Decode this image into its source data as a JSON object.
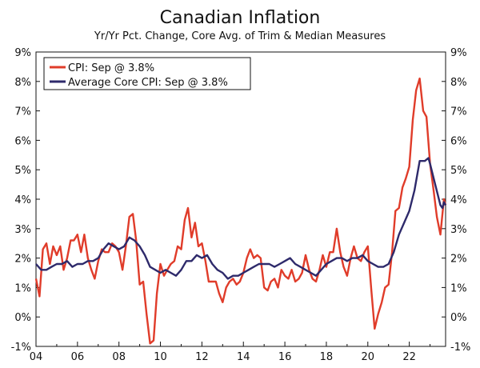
{
  "chart_data": {
    "type": "line",
    "title": "Canadian Inflation",
    "subtitle": "Yr/Yr Pct. Change, Core Avg. of Trim & Median Measures",
    "xlabel": "",
    "ylabel": "",
    "xlim": [
      2004,
      2023.75
    ],
    "ylim": [
      -1,
      9
    ],
    "x_ticks": [
      "04",
      "06",
      "08",
      "10",
      "12",
      "14",
      "16",
      "18",
      "20",
      "22"
    ],
    "y_ticks": [
      "-1%",
      "0%",
      "1%",
      "2%",
      "3%",
      "4%",
      "5%",
      "6%",
      "7%",
      "8%",
      "9%"
    ],
    "legend_position": "top-left",
    "series": [
      {
        "name": "CPI: Sep @ 3.8%",
        "color": "#e03c2a",
        "points": [
          [
            2004.0,
            1.3
          ],
          [
            2004.17,
            0.7
          ],
          [
            2004.33,
            2.3
          ],
          [
            2004.5,
            2.5
          ],
          [
            2004.67,
            1.8
          ],
          [
            2004.83,
            2.4
          ],
          [
            2005.0,
            2.1
          ],
          [
            2005.17,
            2.4
          ],
          [
            2005.33,
            1.6
          ],
          [
            2005.5,
            2.0
          ],
          [
            2005.67,
            2.6
          ],
          [
            2005.83,
            2.6
          ],
          [
            2006.0,
            2.8
          ],
          [
            2006.17,
            2.2
          ],
          [
            2006.33,
            2.8
          ],
          [
            2006.5,
            2.0
          ],
          [
            2006.67,
            1.6
          ],
          [
            2006.83,
            1.3
          ],
          [
            2007.0,
            1.9
          ],
          [
            2007.17,
            2.3
          ],
          [
            2007.33,
            2.2
          ],
          [
            2007.5,
            2.2
          ],
          [
            2007.67,
            2.5
          ],
          [
            2007.83,
            2.4
          ],
          [
            2008.0,
            2.2
          ],
          [
            2008.17,
            1.6
          ],
          [
            2008.33,
            2.4
          ],
          [
            2008.5,
            3.4
          ],
          [
            2008.67,
            3.5
          ],
          [
            2008.83,
            2.6
          ],
          [
            2009.0,
            1.1
          ],
          [
            2009.17,
            1.2
          ],
          [
            2009.33,
            0.1
          ],
          [
            2009.5,
            -0.9
          ],
          [
            2009.67,
            -0.8
          ],
          [
            2009.83,
            0.8
          ],
          [
            2010.0,
            1.8
          ],
          [
            2010.17,
            1.4
          ],
          [
            2010.33,
            1.6
          ],
          [
            2010.5,
            1.8
          ],
          [
            2010.67,
            1.9
          ],
          [
            2010.83,
            2.4
          ],
          [
            2011.0,
            2.3
          ],
          [
            2011.17,
            3.3
          ],
          [
            2011.33,
            3.7
          ],
          [
            2011.5,
            2.7
          ],
          [
            2011.67,
            3.2
          ],
          [
            2011.83,
            2.4
          ],
          [
            2012.0,
            2.5
          ],
          [
            2012.17,
            1.9
          ],
          [
            2012.33,
            1.2
          ],
          [
            2012.5,
            1.2
          ],
          [
            2012.67,
            1.2
          ],
          [
            2012.83,
            0.8
          ],
          [
            2013.0,
            0.5
          ],
          [
            2013.17,
            1.0
          ],
          [
            2013.33,
            1.2
          ],
          [
            2013.5,
            1.3
          ],
          [
            2013.67,
            1.1
          ],
          [
            2013.83,
            1.2
          ],
          [
            2014.0,
            1.5
          ],
          [
            2014.17,
            2.0
          ],
          [
            2014.33,
            2.3
          ],
          [
            2014.5,
            2.0
          ],
          [
            2014.67,
            2.1
          ],
          [
            2014.83,
            2.0
          ],
          [
            2015.0,
            1.0
          ],
          [
            2015.17,
            0.9
          ],
          [
            2015.33,
            1.2
          ],
          [
            2015.5,
            1.3
          ],
          [
            2015.67,
            1.0
          ],
          [
            2015.83,
            1.6
          ],
          [
            2016.0,
            1.4
          ],
          [
            2016.17,
            1.3
          ],
          [
            2016.33,
            1.6
          ],
          [
            2016.5,
            1.2
          ],
          [
            2016.67,
            1.3
          ],
          [
            2016.83,
            1.5
          ],
          [
            2017.0,
            2.1
          ],
          [
            2017.17,
            1.6
          ],
          [
            2017.33,
            1.3
          ],
          [
            2017.5,
            1.2
          ],
          [
            2017.67,
            1.6
          ],
          [
            2017.83,
            2.1
          ],
          [
            2018.0,
            1.7
          ],
          [
            2018.17,
            2.2
          ],
          [
            2018.33,
            2.2
          ],
          [
            2018.5,
            3.0
          ],
          [
            2018.67,
            2.2
          ],
          [
            2018.83,
            1.7
          ],
          [
            2019.0,
            1.4
          ],
          [
            2019.17,
            2.0
          ],
          [
            2019.33,
            2.4
          ],
          [
            2019.5,
            2.0
          ],
          [
            2019.67,
            1.9
          ],
          [
            2019.83,
            2.2
          ],
          [
            2020.0,
            2.4
          ],
          [
            2020.17,
            0.9
          ],
          [
            2020.33,
            -0.4
          ],
          [
            2020.5,
            0.1
          ],
          [
            2020.67,
            0.5
          ],
          [
            2020.83,
            1.0
          ],
          [
            2021.0,
            1.1
          ],
          [
            2021.17,
            2.2
          ],
          [
            2021.33,
            3.6
          ],
          [
            2021.5,
            3.7
          ],
          [
            2021.67,
            4.4
          ],
          [
            2021.83,
            4.7
          ],
          [
            2022.0,
            5.1
          ],
          [
            2022.17,
            6.7
          ],
          [
            2022.33,
            7.7
          ],
          [
            2022.5,
            8.1
          ],
          [
            2022.67,
            7.0
          ],
          [
            2022.83,
            6.8
          ],
          [
            2023.0,
            5.2
          ],
          [
            2023.17,
            4.3
          ],
          [
            2023.33,
            3.4
          ],
          [
            2023.5,
            2.8
          ],
          [
            2023.67,
            4.0
          ],
          [
            2023.75,
            3.8
          ]
        ]
      },
      {
        "name": "Average Core CPI: Sep @ 3.8%",
        "color": "#2e2a6b",
        "points": [
          [
            2004.0,
            1.8
          ],
          [
            2004.25,
            1.6
          ],
          [
            2004.5,
            1.6
          ],
          [
            2004.75,
            1.7
          ],
          [
            2005.0,
            1.8
          ],
          [
            2005.25,
            1.8
          ],
          [
            2005.5,
            1.9
          ],
          [
            2005.75,
            1.7
          ],
          [
            2006.0,
            1.8
          ],
          [
            2006.25,
            1.8
          ],
          [
            2006.5,
            1.9
          ],
          [
            2006.75,
            1.9
          ],
          [
            2007.0,
            2.0
          ],
          [
            2007.25,
            2.3
          ],
          [
            2007.5,
            2.5
          ],
          [
            2007.75,
            2.4
          ],
          [
            2008.0,
            2.3
          ],
          [
            2008.25,
            2.4
          ],
          [
            2008.5,
            2.7
          ],
          [
            2008.75,
            2.6
          ],
          [
            2009.0,
            2.4
          ],
          [
            2009.25,
            2.1
          ],
          [
            2009.5,
            1.7
          ],
          [
            2009.75,
            1.6
          ],
          [
            2010.0,
            1.5
          ],
          [
            2010.25,
            1.6
          ],
          [
            2010.5,
            1.5
          ],
          [
            2010.75,
            1.4
          ],
          [
            2011.0,
            1.6
          ],
          [
            2011.25,
            1.9
          ],
          [
            2011.5,
            1.9
          ],
          [
            2011.75,
            2.1
          ],
          [
            2012.0,
            2.0
          ],
          [
            2012.25,
            2.1
          ],
          [
            2012.5,
            1.8
          ],
          [
            2012.75,
            1.6
          ],
          [
            2013.0,
            1.5
          ],
          [
            2013.25,
            1.3
          ],
          [
            2013.5,
            1.4
          ],
          [
            2013.75,
            1.4
          ],
          [
            2014.0,
            1.5
          ],
          [
            2014.25,
            1.6
          ],
          [
            2014.5,
            1.7
          ],
          [
            2014.75,
            1.8
          ],
          [
            2015.0,
            1.8
          ],
          [
            2015.25,
            1.8
          ],
          [
            2015.5,
            1.7
          ],
          [
            2015.75,
            1.8
          ],
          [
            2016.0,
            1.9
          ],
          [
            2016.25,
            2.0
          ],
          [
            2016.5,
            1.8
          ],
          [
            2016.75,
            1.7
          ],
          [
            2017.0,
            1.6
          ],
          [
            2017.25,
            1.5
          ],
          [
            2017.5,
            1.4
          ],
          [
            2017.75,
            1.6
          ],
          [
            2018.0,
            1.8
          ],
          [
            2018.25,
            1.9
          ],
          [
            2018.5,
            2.0
          ],
          [
            2018.75,
            2.0
          ],
          [
            2019.0,
            1.9
          ],
          [
            2019.25,
            2.0
          ],
          [
            2019.5,
            2.0
          ],
          [
            2019.75,
            2.1
          ],
          [
            2020.0,
            1.9
          ],
          [
            2020.25,
            1.8
          ],
          [
            2020.5,
            1.7
          ],
          [
            2020.75,
            1.7
          ],
          [
            2021.0,
            1.8
          ],
          [
            2021.25,
            2.2
          ],
          [
            2021.5,
            2.8
          ],
          [
            2021.75,
            3.2
          ],
          [
            2022.0,
            3.6
          ],
          [
            2022.25,
            4.3
          ],
          [
            2022.5,
            5.3
          ],
          [
            2022.75,
            5.3
          ],
          [
            2022.92,
            5.4
          ],
          [
            2023.0,
            5.2
          ],
          [
            2023.25,
            4.5
          ],
          [
            2023.5,
            3.8
          ],
          [
            2023.6,
            3.7
          ],
          [
            2023.67,
            3.9
          ],
          [
            2023.75,
            3.8
          ]
        ]
      }
    ]
  }
}
